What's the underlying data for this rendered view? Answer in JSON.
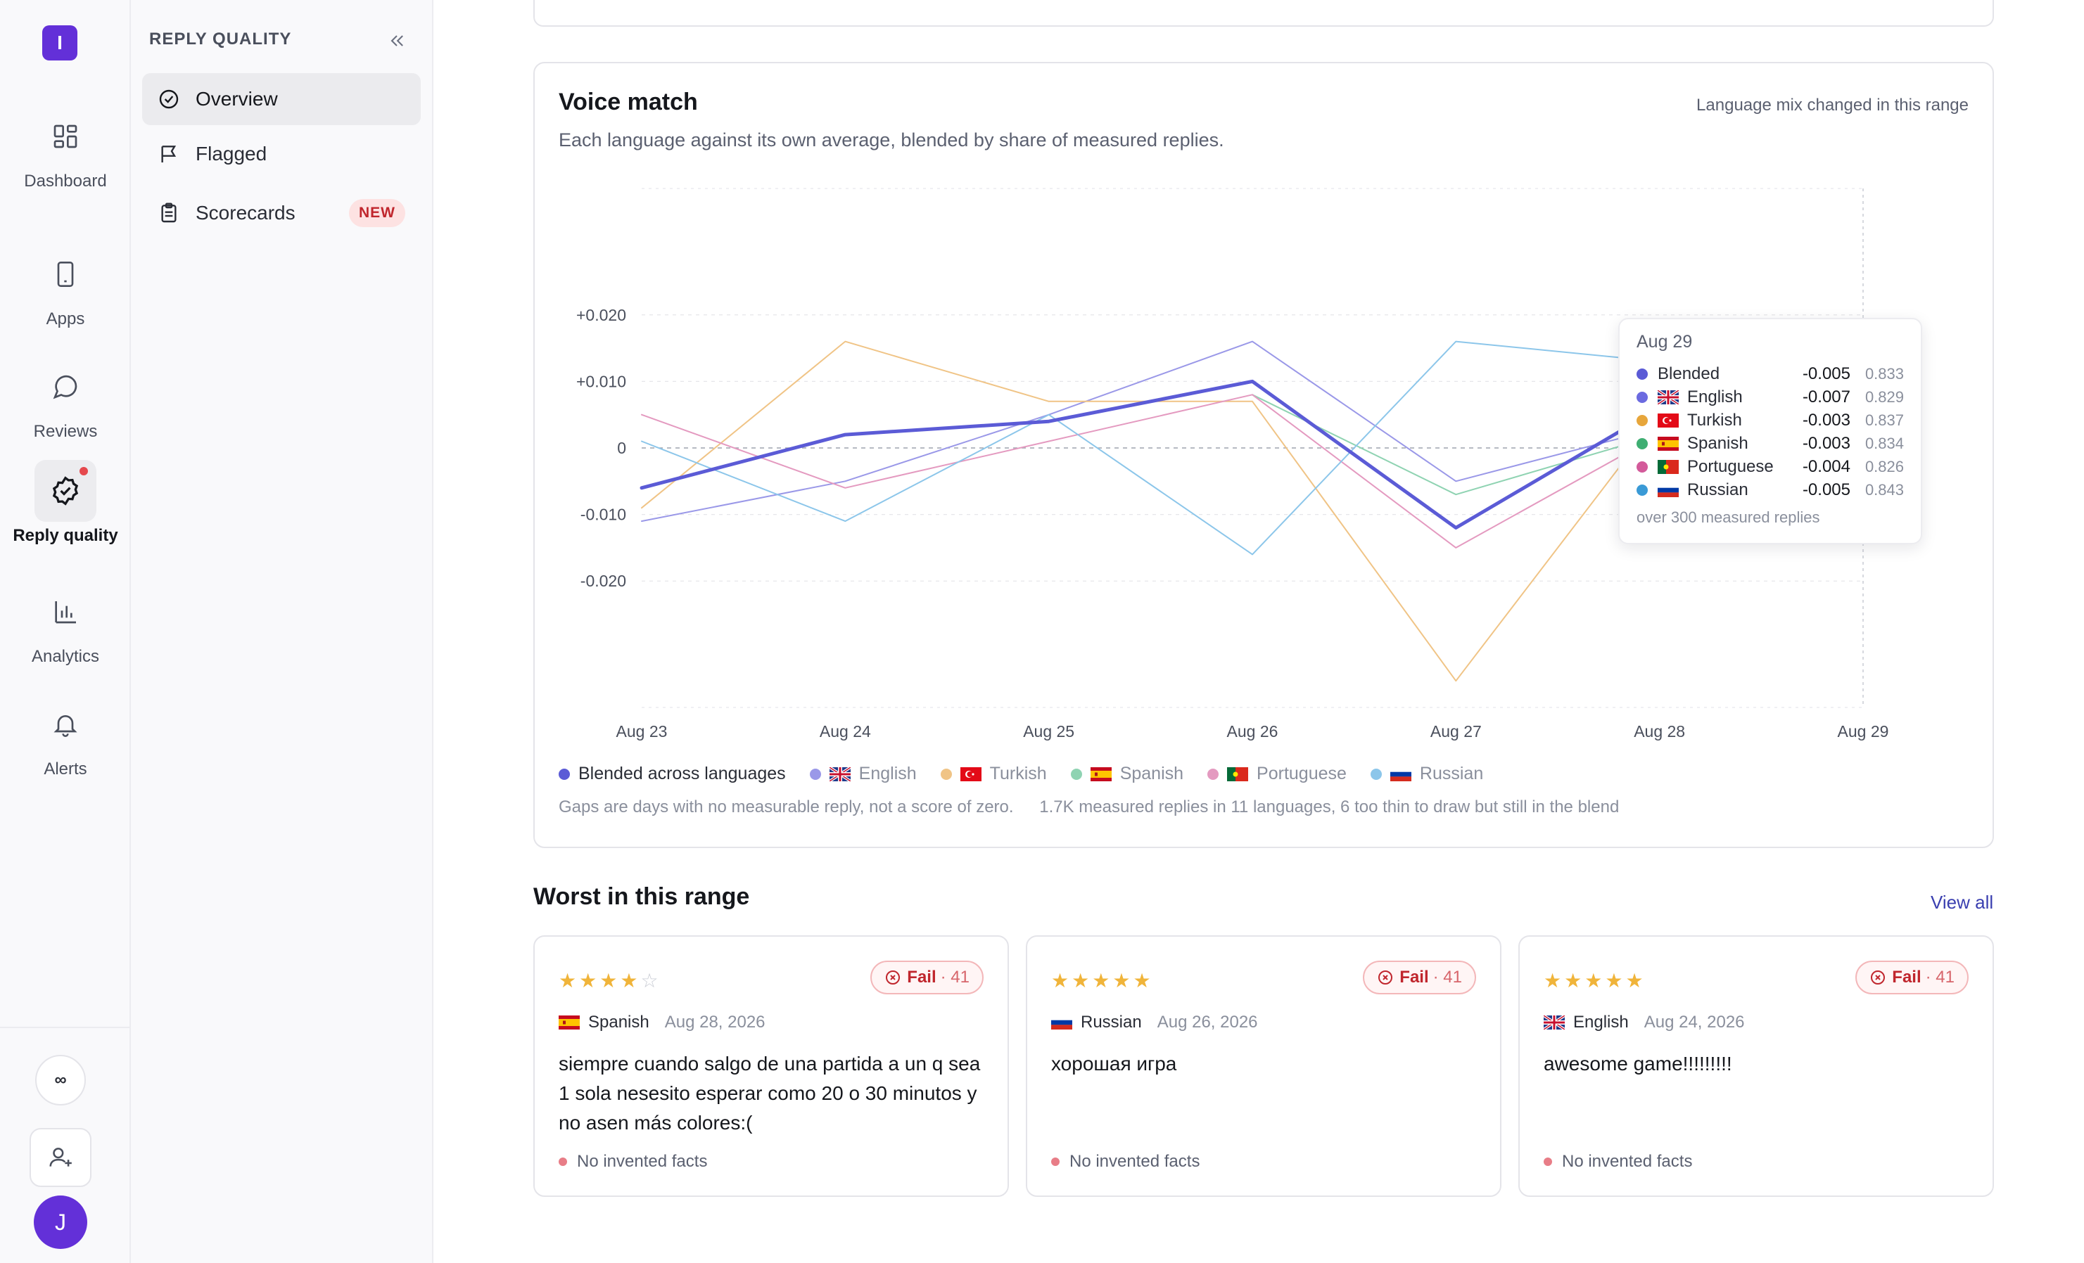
{
  "app": {
    "logo_letter": "I",
    "user_initial": "J",
    "infinity": "∞"
  },
  "rail": [
    {
      "label": "Dashboard",
      "icon": "dashboard-icon"
    },
    {
      "label": "Apps",
      "icon": "phone-icon"
    },
    {
      "label": "Reviews",
      "icon": "chat-bubble-icon"
    },
    {
      "label": "Reply quality",
      "icon": "check-badge-icon",
      "active": true
    },
    {
      "label": "Analytics",
      "icon": "bar-chart-icon"
    },
    {
      "label": "Alerts",
      "icon": "bell-icon"
    }
  ],
  "subnav": {
    "title": "REPLY QUALITY",
    "items": [
      {
        "label": "Overview",
        "icon": "check-badge-icon",
        "active": true
      },
      {
        "label": "Flagged",
        "icon": "flag-icon"
      },
      {
        "label": "Scorecards",
        "icon": "clipboard-icon",
        "badge": "NEW"
      }
    ]
  },
  "voice_match": {
    "title": "Voice match",
    "subtitle": "Each language against its own average, blended by share of measured replies.",
    "note": "Language mix changed in this range",
    "legend": [
      {
        "label": "Blended across languages",
        "color": "#5b5bd6"
      },
      {
        "label": "English",
        "color": "#9a98e8",
        "flag": "uk"
      },
      {
        "label": "Turkish",
        "color": "#f0c486",
        "flag": "tr"
      },
      {
        "label": "Spanish",
        "color": "#8fd3b2",
        "flag": "es"
      },
      {
        "label": "Portuguese",
        "color": "#e49ac0",
        "flag": "pt"
      },
      {
        "label": "Russian",
        "color": "#8cc6ea",
        "flag": "ru"
      }
    ],
    "footnote_gaps": "Gaps are days with no measurable reply, not a score of zero.",
    "footnote_count": "1.7K measured replies in 11 languages, 6 too thin to draw but still in the blend",
    "tooltip": {
      "date": "Aug 29",
      "rows": [
        {
          "name": "Blended",
          "value": "-0.005",
          "score": "0.833",
          "color": "#5b5bd6"
        },
        {
          "name": "English",
          "value": "-0.007",
          "score": "0.829",
          "color": "#6b6ae0",
          "flag": "uk"
        },
        {
          "name": "Turkish",
          "value": "-0.003",
          "score": "0.837",
          "color": "#e7a63b",
          "flag": "tr"
        },
        {
          "name": "Spanish",
          "value": "-0.003",
          "score": "0.834",
          "color": "#3fae72",
          "flag": "es"
        },
        {
          "name": "Portuguese",
          "value": "-0.004",
          "score": "0.826",
          "color": "#d35a9a",
          "flag": "pt"
        },
        {
          "name": "Russian",
          "value": "-0.005",
          "score": "0.843",
          "color": "#3a9ad6",
          "flag": "ru"
        }
      ],
      "footer": "over 300 measured replies"
    }
  },
  "chart_data": {
    "type": "line",
    "x": [
      "Aug 23",
      "Aug 24",
      "Aug 25",
      "Aug 26",
      "Aug 27",
      "Aug 28",
      "Aug 29"
    ],
    "yticks": [
      "+0.020",
      "+0.010",
      "0",
      "-0.010",
      "-0.020"
    ],
    "ylim": [
      -0.039,
      0.039
    ],
    "series": [
      {
        "name": "English",
        "color": "#9a98e8",
        "width": 2,
        "values": [
          -0.011,
          -0.005,
          0.005,
          0.016,
          -0.005,
          0.003,
          -0.007
        ]
      },
      {
        "name": "Turkish",
        "color": "#f0c486",
        "width": 2,
        "values": [
          -0.009,
          0.016,
          0.007,
          0.007,
          -0.035,
          0.005,
          -0.003
        ]
      },
      {
        "name": "Spanish",
        "color": "#8fd3b2",
        "width": 2,
        "values": [
          null,
          null,
          null,
          0.008,
          -0.007,
          0.002,
          -0.003
        ]
      },
      {
        "name": "Portuguese",
        "color": "#e49ac0",
        "width": 2,
        "values": [
          0.005,
          -0.006,
          0.001,
          0.008,
          -0.015,
          0.002,
          -0.004
        ]
      },
      {
        "name": "Russian",
        "color": "#8cc6ea",
        "width": 2,
        "values": [
          0.001,
          -0.011,
          0.005,
          -0.016,
          0.016,
          0.013,
          -0.005
        ]
      },
      {
        "name": "Blended",
        "color": "#5b5bd6",
        "width": 5,
        "values": [
          -0.006,
          0.002,
          0.004,
          0.01,
          -0.012,
          0.006,
          -0.005
        ]
      }
    ]
  },
  "worst": {
    "title": "Worst in this range",
    "view_all": "View all",
    "cards": [
      {
        "stars": 4,
        "fail": "Fail",
        "score": "· 41",
        "flag": "es",
        "language": "Spanish",
        "date": "Aug 28, 2026",
        "text": "siempre cuando salgo de una partida a un q sea 1 sola nesesito esperar como 20 o 30 minutos y no asen más colores:(",
        "check": "No invented facts"
      },
      {
        "stars": 5,
        "fail": "Fail",
        "score": "· 41",
        "flag": "ru",
        "language": "Russian",
        "date": "Aug 26, 2026",
        "text": "хорошая игра",
        "check": "No invented facts"
      },
      {
        "stars": 5,
        "fail": "Fail",
        "score": "· 41",
        "flag": "uk",
        "language": "English",
        "date": "Aug 24, 2026",
        "text": "awesome game!!!!!!!!!",
        "check": "No invented facts"
      }
    ]
  }
}
